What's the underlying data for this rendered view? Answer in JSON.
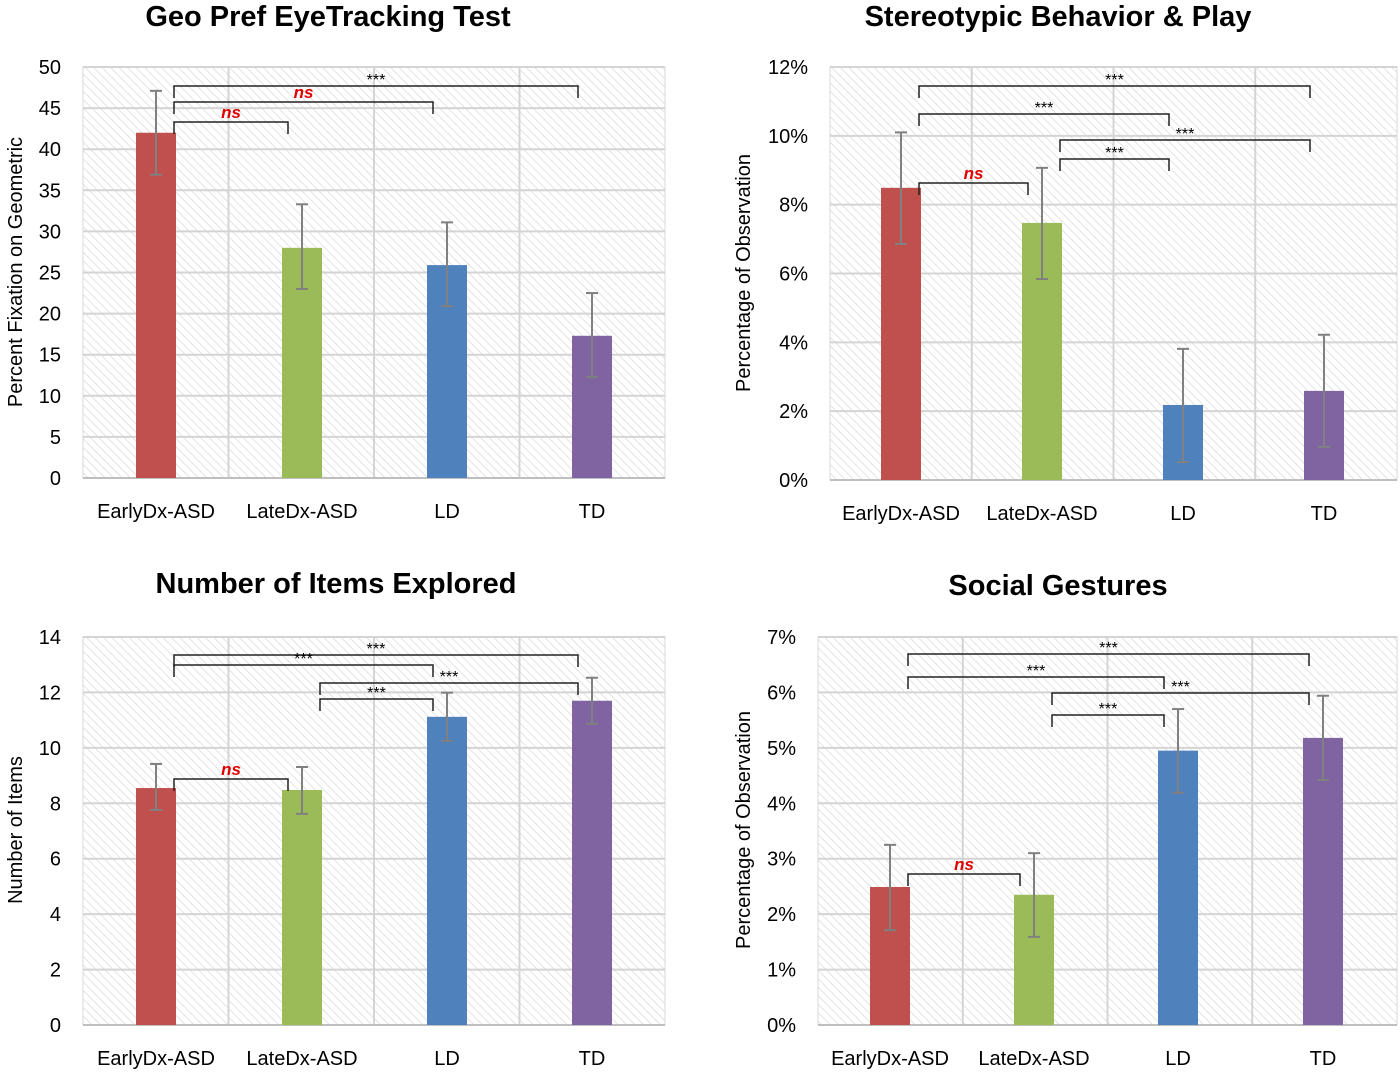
{
  "chart_data": [
    {
      "type": "bar",
      "title": "Geo Pref EyeTracking Test",
      "ylabel": "Percent Fixation on Geometric",
      "xlabel": "",
      "categories": [
        "EarlyDx-ASD",
        "LateDx-ASD",
        "LD",
        "TD"
      ],
      "values": [
        42.0,
        28.0,
        25.9,
        17.3
      ],
      "error_low": [
        36.9,
        23.0,
        20.9,
        12.3
      ],
      "error_high": [
        47.1,
        33.3,
        31.1,
        22.5
      ],
      "ylim": [
        0,
        50
      ],
      "yticks": [
        0,
        5,
        10,
        15,
        20,
        25,
        30,
        35,
        40,
        45,
        50
      ],
      "ytick_labels": [
        "0",
        "5",
        "10",
        "15",
        "20",
        "25",
        "30",
        "35",
        "40",
        "45",
        "50"
      ],
      "colors": [
        "#c0504d",
        "#9bbb59",
        "#4f81bd",
        "#8064a2"
      ],
      "grid": true,
      "comparisons": [
        {
          "from": 0,
          "to": 3,
          "label": "***"
        },
        {
          "from": 0,
          "to": 2,
          "label": "ns"
        },
        {
          "from": 0,
          "to": 1,
          "label": "ns"
        }
      ]
    },
    {
      "type": "bar",
      "title": "Stereotypic Behavior & Play",
      "ylabel": "Percentage of Observation",
      "xlabel": "",
      "categories": [
        "EarlyDx-ASD",
        "LateDx-ASD",
        "LD",
        "TD"
      ],
      "values": [
        8.49,
        7.47,
        2.18,
        2.59
      ],
      "error_low": [
        6.86,
        5.84,
        0.52,
        0.96
      ],
      "error_high": [
        10.1,
        9.07,
        3.81,
        4.22
      ],
      "ylim": [
        0,
        12
      ],
      "yticks": [
        0,
        2,
        4,
        6,
        8,
        10,
        12
      ],
      "ytick_labels": [
        "0%",
        "2%",
        "4%",
        "6%",
        "8%",
        "10%",
        "12%"
      ],
      "colors": [
        "#c0504d",
        "#9bbb59",
        "#4f81bd",
        "#8064a2"
      ],
      "grid": true,
      "comparisons": [
        {
          "from": 0,
          "to": 3,
          "label": "***"
        },
        {
          "from": 0,
          "to": 2,
          "label": "***"
        },
        {
          "from": 1,
          "to": 3,
          "label": "***"
        },
        {
          "from": 1,
          "to": 2,
          "label": "***"
        },
        {
          "from": 0,
          "to": 1,
          "label": "ns"
        }
      ]
    },
    {
      "type": "bar",
      "title": "Number of Items Explored",
      "ylabel": "Number of Items",
      "xlabel": "",
      "categories": [
        "EarlyDx-ASD",
        "LateDx-ASD",
        "LD",
        "TD"
      ],
      "values": [
        8.55,
        8.48,
        11.12,
        11.7
      ],
      "error_low": [
        7.76,
        7.62,
        10.25,
        10.87
      ],
      "error_high": [
        9.42,
        9.31,
        11.99,
        12.53
      ],
      "ylim": [
        0,
        14
      ],
      "yticks": [
        0,
        2,
        4,
        6,
        8,
        10,
        12,
        14
      ],
      "ytick_labels": [
        "0",
        "2",
        "4",
        "6",
        "8",
        "10",
        "12",
        "14"
      ],
      "colors": [
        "#c0504d",
        "#9bbb59",
        "#4f81bd",
        "#8064a2"
      ],
      "grid": true,
      "comparisons": [
        {
          "from": 0,
          "to": 3,
          "label": "***"
        },
        {
          "from": 0,
          "to": 2,
          "label": "***"
        },
        {
          "from": 1,
          "to": 3,
          "label": "***"
        },
        {
          "from": 1,
          "to": 2,
          "label": "***"
        },
        {
          "from": 0,
          "to": 1,
          "label": "ns"
        }
      ]
    },
    {
      "type": "bar",
      "title": "Social Gestures",
      "ylabel": "Percentage of Observation",
      "xlabel": "",
      "categories": [
        "EarlyDx-ASD",
        "LateDx-ASD",
        "LD",
        "TD"
      ],
      "values": [
        2.49,
        2.35,
        4.95,
        5.18
      ],
      "error_low": [
        1.71,
        1.59,
        4.19,
        4.42
      ],
      "error_high": [
        3.25,
        3.1,
        5.7,
        5.94
      ],
      "ylim": [
        0,
        7
      ],
      "yticks": [
        0,
        1,
        2,
        3,
        4,
        5,
        6,
        7
      ],
      "ytick_labels": [
        "0%",
        "1%",
        "2%",
        "3%",
        "4%",
        "5%",
        "6%",
        "7%"
      ],
      "colors": [
        "#c0504d",
        "#9bbb59",
        "#4f81bd",
        "#8064a2"
      ],
      "grid": true,
      "comparisons": [
        {
          "from": 0,
          "to": 3,
          "label": "***"
        },
        {
          "from": 0,
          "to": 2,
          "label": "***"
        },
        {
          "from": 1,
          "to": 3,
          "label": "***"
        },
        {
          "from": 1,
          "to": 2,
          "label": "***"
        },
        {
          "from": 0,
          "to": 1,
          "label": "ns"
        }
      ]
    }
  ]
}
